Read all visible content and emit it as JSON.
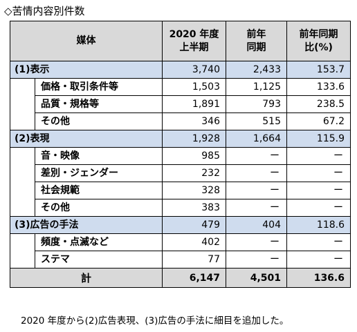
{
  "title": "◇苦情内容別件数",
  "header": {
    "col0": "媒体",
    "col1_line1": "2020 年度",
    "col1_line2": "上半期",
    "col2_line1": "前年",
    "col2_line2": "同期",
    "col3_line1": "前年同期",
    "col3_line2": "比(%)"
  },
  "rows": [
    {
      "kind": "cat",
      "label": "(1)表示",
      "current": "3,740",
      "prev": "2,433",
      "ratio": "153.7"
    },
    {
      "kind": "sub",
      "label": "価格・取引条件等",
      "current": "1,503",
      "prev": "1,125",
      "ratio": "133.6"
    },
    {
      "kind": "sub",
      "label": "品質・規格等",
      "current": "1,891",
      "prev": "793",
      "ratio": "238.5"
    },
    {
      "kind": "sub",
      "label": "その他",
      "current": "346",
      "prev": "515",
      "ratio": "67.2"
    },
    {
      "kind": "cat",
      "label": "(2)表現",
      "current": "1,928",
      "prev": "1,664",
      "ratio": "115.9"
    },
    {
      "kind": "sub",
      "label": "音・映像",
      "current": "985",
      "prev": "ー",
      "ratio": "ー"
    },
    {
      "kind": "sub",
      "label": "差別・ジェンダー",
      "current": "232",
      "prev": "ー",
      "ratio": "ー"
    },
    {
      "kind": "sub",
      "label": "社会規範",
      "current": "328",
      "prev": "ー",
      "ratio": "ー"
    },
    {
      "kind": "sub",
      "label": "その他",
      "current": "383",
      "prev": "ー",
      "ratio": "ー"
    },
    {
      "kind": "cat",
      "label": "(3)広告の手法",
      "current": "479",
      "prev": "404",
      "ratio": "118.6"
    },
    {
      "kind": "sub",
      "label": "頻度・点滅など",
      "current": "402",
      "prev": "ー",
      "ratio": "ー"
    },
    {
      "kind": "sub",
      "label": "ステマ",
      "current": "77",
      "prev": "ー",
      "ratio": "ー"
    }
  ],
  "total": {
    "label": "計",
    "current": "6,147",
    "prev": "4,501",
    "ratio": "136.6"
  },
  "footnote": "2020 年度から(2)広告表現、(3)広告の手法に細目を追加した。"
}
